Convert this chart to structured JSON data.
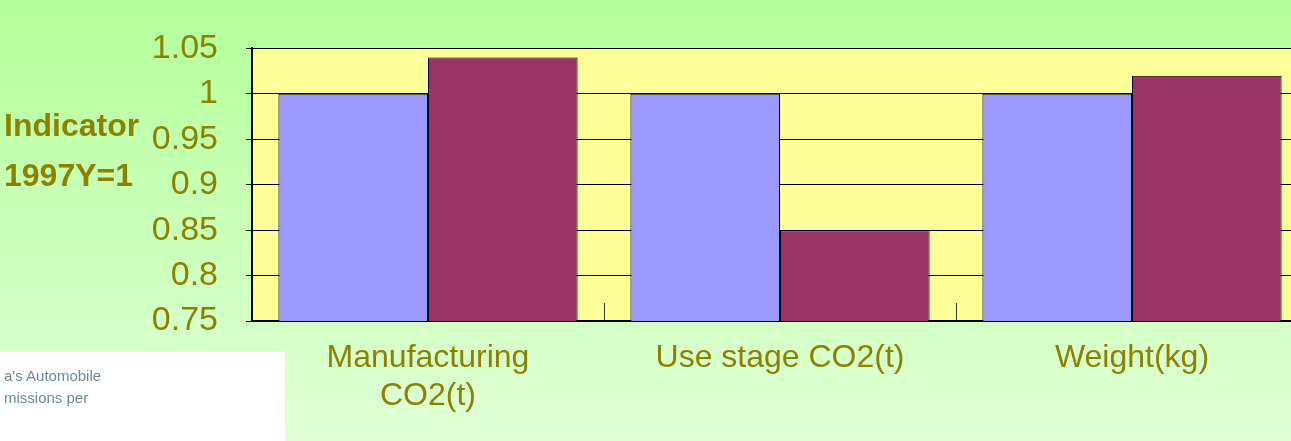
{
  "chart_data": {
    "type": "bar",
    "ylabel": "Indicator 1997Y=1",
    "categories": [
      "Manufacturing CO2(t)",
      "Use stage CO2(t)",
      "Weight(kg)"
    ],
    "series": [
      {
        "color": "#9999ff",
        "values": [
          1,
          1,
          1
        ]
      },
      {
        "color": "#993366",
        "values": [
          1.04,
          0.85,
          1.02
        ]
      }
    ],
    "bands": [
      {
        "axis": "y",
        "from": 0.75,
        "to": 1.05,
        "color": "#ffff99"
      }
    ],
    "ylim": [
      0.75,
      1.05
    ],
    "yticks": [
      0.75,
      0.8,
      0.85,
      0.9,
      0.95,
      1,
      1.05
    ],
    "grid": "y",
    "legend": false,
    "annotations": [
      "a's Automobile",
      "missions per"
    ]
  }
}
